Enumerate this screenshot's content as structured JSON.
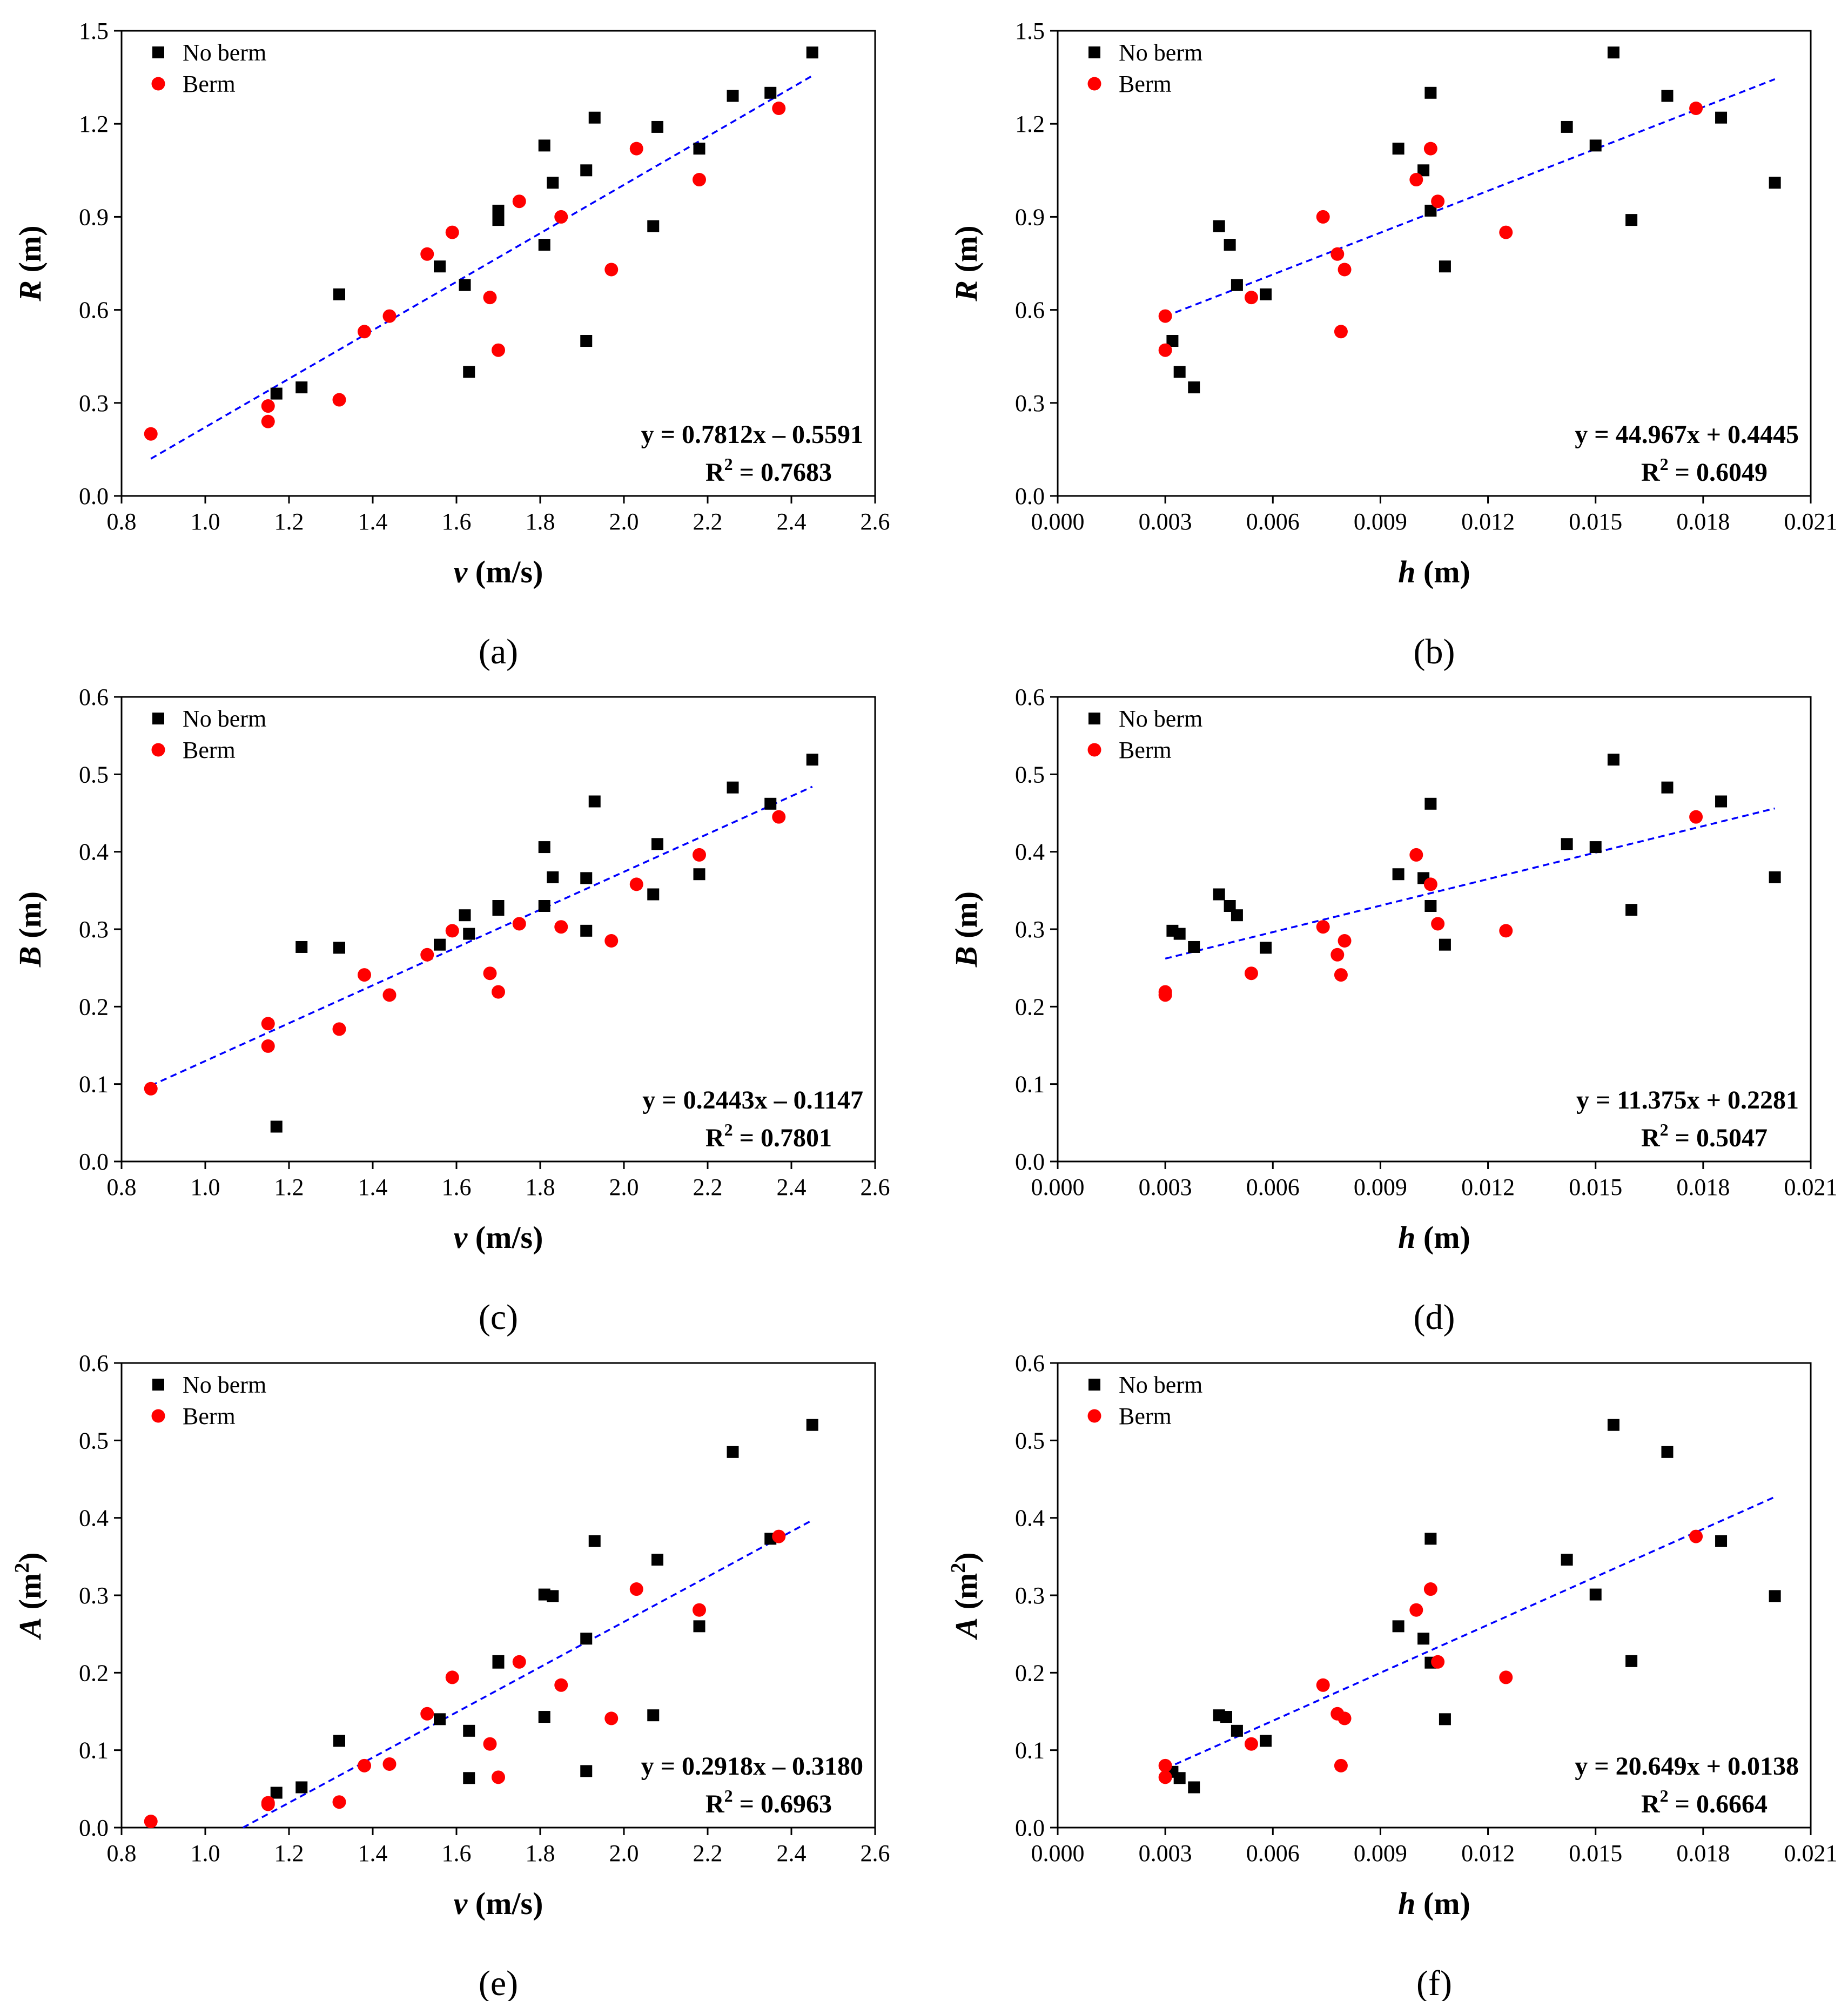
{
  "colors": {
    "no_berm": "#000000",
    "berm": "#ff0000",
    "trend": "#0000ff",
    "axis": "#000000"
  },
  "chart_data": [
    {
      "type": "scatter",
      "panel_label": "(a)",
      "xvar": "v",
      "xunit": " (m/s)",
      "yvar": "R",
      "yunit": " (m)",
      "ysup": "",
      "xlim": [
        0.8,
        2.6
      ],
      "ylim": [
        0.0,
        1.5
      ],
      "xticks": [
        "0.8",
        "1.0",
        "1.2",
        "1.4",
        "1.6",
        "1.8",
        "2.0",
        "2.2",
        "2.4",
        "2.6"
      ],
      "yticks": [
        "0.0",
        "0.3",
        "0.6",
        "0.9",
        "1.2",
        "1.5"
      ],
      "legend": [
        "No berm",
        "Berm"
      ],
      "equation": "y = 0.7812x – 0.5591",
      "r2_label": "R",
      "r2_sup": "2",
      "r2_value": " = 0.7683",
      "trend": {
        "x": [
          0.87,
          2.45
        ],
        "y": [
          0.12,
          1.355
        ]
      },
      "series": [
        {
          "name": "No berm",
          "x": [
            1.17,
            1.23,
            1.32,
            1.56,
            1.62,
            1.63,
            1.7,
            1.7,
            1.81,
            1.81,
            1.83,
            1.91,
            1.91,
            1.93,
            2.07,
            2.08,
            2.18,
            2.26,
            2.35,
            2.45
          ],
          "y": [
            0.33,
            0.35,
            0.65,
            0.74,
            0.68,
            0.4,
            0.92,
            0.89,
            1.13,
            0.81,
            1.01,
            1.05,
            0.5,
            1.22,
            0.87,
            1.19,
            1.12,
            1.29,
            1.3,
            1.43
          ]
        },
        {
          "name": "Berm",
          "x": [
            0.87,
            1.15,
            1.15,
            1.32,
            1.38,
            1.44,
            1.53,
            1.59,
            1.68,
            1.7,
            1.75,
            1.85,
            1.97,
            2.03,
            2.18,
            2.37
          ],
          "y": [
            0.2,
            0.29,
            0.24,
            0.31,
            0.53,
            0.58,
            0.78,
            0.85,
            0.64,
            0.47,
            0.95,
            0.9,
            0.73,
            1.12,
            1.02,
            1.25
          ]
        }
      ]
    },
    {
      "type": "scatter",
      "panel_label": "(b)",
      "xvar": "h",
      "xunit": " (m)",
      "yvar": "R",
      "yunit": " (m)",
      "ysup": "",
      "xlim": [
        0.0,
        0.021
      ],
      "ylim": [
        0.0,
        1.5
      ],
      "xticks": [
        "0.000",
        "0.003",
        "0.006",
        "0.009",
        "0.012",
        "0.015",
        "0.018",
        "0.021"
      ],
      "yticks": [
        "0.0",
        "0.3",
        "0.6",
        "0.9",
        "1.2",
        "1.5"
      ],
      "legend": [
        "No berm",
        "Berm"
      ],
      "equation": "y = 44.967x + 0.4445",
      "r2_label": "R",
      "r2_sup": "2",
      "r2_value": " = 0.6049",
      "trend": {
        "x": [
          0.003,
          0.02
        ],
        "y": [
          0.579,
          1.344
        ]
      },
      "series": [
        {
          "name": "No berm",
          "x": [
            0.0032,
            0.0034,
            0.0038,
            0.0045,
            0.0048,
            0.005,
            0.0058,
            0.0095,
            0.0102,
            0.0104,
            0.0104,
            0.0108,
            0.0142,
            0.015,
            0.0155,
            0.016,
            0.017,
            0.0185,
            0.02
          ],
          "y": [
            0.5,
            0.4,
            0.35,
            0.87,
            0.81,
            0.68,
            0.65,
            1.12,
            1.05,
            0.92,
            1.3,
            0.74,
            1.19,
            1.13,
            1.43,
            0.89,
            1.29,
            1.22,
            1.01
          ]
        },
        {
          "name": "Berm",
          "x": [
            0.003,
            0.003,
            0.0054,
            0.0074,
            0.0078,
            0.0079,
            0.008,
            0.01,
            0.0104,
            0.0106,
            0.0125,
            0.0178
          ],
          "y": [
            0.58,
            0.47,
            0.64,
            0.9,
            0.78,
            0.53,
            0.73,
            1.02,
            1.12,
            0.95,
            0.85,
            1.25
          ]
        }
      ]
    },
    {
      "type": "scatter",
      "panel_label": "(c)",
      "xvar": "v",
      "xunit": " (m/s)",
      "yvar": "B",
      "yunit": " (m)",
      "ysup": "",
      "xlim": [
        0.8,
        2.6
      ],
      "ylim": [
        0.0,
        0.6
      ],
      "xticks": [
        "0.8",
        "1.0",
        "1.2",
        "1.4",
        "1.6",
        "1.8",
        "2.0",
        "2.2",
        "2.4",
        "2.6"
      ],
      "yticks": [
        "0.0",
        "0.1",
        "0.2",
        "0.3",
        "0.4",
        "0.5",
        "0.6"
      ],
      "legend": [
        "No berm",
        "Berm"
      ],
      "equation": "y = 0.2443x – 0.1147",
      "r2_label": "R",
      "r2_sup": "2",
      "r2_value": " = 0.7801",
      "trend": {
        "x": [
          0.87,
          2.45
        ],
        "y": [
          0.098,
          0.484
        ]
      },
      "series": [
        {
          "name": "No berm",
          "x": [
            1.17,
            1.23,
            1.32,
            1.56,
            1.62,
            1.63,
            1.7,
            1.7,
            1.81,
            1.81,
            1.83,
            1.91,
            1.91,
            1.93,
            2.07,
            2.08,
            2.18,
            2.26,
            2.35,
            2.45
          ],
          "y": [
            0.045,
            0.277,
            0.276,
            0.28,
            0.318,
            0.294,
            0.33,
            0.325,
            0.406,
            0.33,
            0.367,
            0.366,
            0.298,
            0.465,
            0.345,
            0.41,
            0.371,
            0.483,
            0.462,
            0.519
          ]
        },
        {
          "name": "Berm",
          "x": [
            0.87,
            1.15,
            1.15,
            1.32,
            1.38,
            1.44,
            1.53,
            1.59,
            1.68,
            1.7,
            1.75,
            1.85,
            1.97,
            2.03,
            2.18,
            2.37
          ],
          "y": [
            0.094,
            0.178,
            0.149,
            0.171,
            0.241,
            0.215,
            0.267,
            0.298,
            0.243,
            0.219,
            0.307,
            0.303,
            0.285,
            0.358,
            0.396,
            0.445
          ]
        }
      ]
    },
    {
      "type": "scatter",
      "panel_label": "(d)",
      "xvar": "h",
      "xunit": " (m)",
      "yvar": "B",
      "yunit": " (m)",
      "ysup": "",
      "xlim": [
        0.0,
        0.021
      ],
      "ylim": [
        0.0,
        0.6
      ],
      "xticks": [
        "0.000",
        "0.003",
        "0.006",
        "0.009",
        "0.012",
        "0.015",
        "0.018",
        "0.021"
      ],
      "yticks": [
        "0.0",
        "0.1",
        "0.2",
        "0.3",
        "0.4",
        "0.5",
        "0.6"
      ],
      "legend": [
        "No berm",
        "Berm"
      ],
      "equation": "y = 11.375x + 0.2281",
      "r2_label": "R",
      "r2_sup": "2",
      "r2_value": " = 0.5047",
      "trend": {
        "x": [
          0.003,
          0.02
        ],
        "y": [
          0.262,
          0.456
        ]
      },
      "series": [
        {
          "name": "No berm",
          "x": [
            0.0032,
            0.0034,
            0.0038,
            0.0045,
            0.0048,
            0.005,
            0.0058,
            0.0095,
            0.0102,
            0.0104,
            0.0104,
            0.0108,
            0.0142,
            0.015,
            0.0155,
            0.016,
            0.017,
            0.0185,
            0.02
          ],
          "y": [
            0.298,
            0.294,
            0.277,
            0.345,
            0.33,
            0.318,
            0.276,
            0.371,
            0.366,
            0.33,
            0.462,
            0.28,
            0.41,
            0.406,
            0.519,
            0.325,
            0.483,
            0.465,
            0.367
          ]
        },
        {
          "name": "Berm",
          "x": [
            0.003,
            0.003,
            0.0054,
            0.0074,
            0.0078,
            0.0079,
            0.008,
            0.01,
            0.0104,
            0.0106,
            0.0125,
            0.0178
          ],
          "y": [
            0.219,
            0.215,
            0.243,
            0.303,
            0.267,
            0.241,
            0.285,
            0.396,
            0.358,
            0.307,
            0.298,
            0.445
          ]
        }
      ]
    },
    {
      "type": "scatter",
      "panel_label": "(e)",
      "xvar": "v",
      "xunit": " (m/s)",
      "yvar": "A",
      "yunit": " (m",
      "ysup": "2",
      "xlim": [
        0.8,
        2.6
      ],
      "ylim": [
        0.0,
        0.6
      ],
      "xticks": [
        "0.8",
        "1.0",
        "1.2",
        "1.4",
        "1.6",
        "1.8",
        "2.0",
        "2.2",
        "2.4",
        "2.6"
      ],
      "yticks": [
        "0.0",
        "0.1",
        "0.2",
        "0.3",
        "0.4",
        "0.5",
        "0.6"
      ],
      "legend": [
        "No berm",
        "Berm"
      ],
      "equation": "y = 0.2918x – 0.3180",
      "r2_label": "R",
      "r2_sup": "2",
      "r2_value": " = 0.6963",
      "trend": {
        "x": [
          1.09,
          2.45
        ],
        "y": [
          0.0,
          0.397
        ]
      },
      "series": [
        {
          "name": "No berm",
          "x": [
            1.17,
            1.23,
            1.32,
            1.56,
            1.63,
            1.63,
            1.7,
            1.7,
            1.81,
            1.81,
            1.83,
            1.91,
            1.91,
            1.93,
            2.07,
            2.08,
            2.18,
            2.26,
            2.35,
            2.45
          ],
          "y": [
            0.045,
            0.052,
            0.112,
            0.14,
            0.125,
            0.064,
            0.215,
            0.213,
            0.301,
            0.143,
            0.299,
            0.244,
            0.073,
            0.37,
            0.145,
            0.346,
            0.26,
            0.485,
            0.373,
            0.52
          ]
        },
        {
          "name": "Berm",
          "x": [
            0.87,
            1.15,
            1.15,
            1.32,
            1.38,
            1.44,
            1.53,
            1.59,
            1.68,
            1.7,
            1.75,
            1.85,
            1.97,
            2.03,
            2.18,
            2.37
          ],
          "y": [
            0.008,
            0.032,
            0.03,
            0.033,
            0.08,
            0.082,
            0.147,
            0.194,
            0.108,
            0.065,
            0.214,
            0.184,
            0.141,
            0.308,
            0.281,
            0.376
          ]
        }
      ]
    },
    {
      "type": "scatter",
      "panel_label": "(f)",
      "xvar": "h",
      "xunit": " (m)",
      "yvar": "A",
      "yunit": " (m",
      "ysup": "2",
      "xlim": [
        0.0,
        0.021
      ],
      "ylim": [
        0.0,
        0.6
      ],
      "xticks": [
        "0.000",
        "0.003",
        "0.006",
        "0.009",
        "0.012",
        "0.015",
        "0.018",
        "0.021"
      ],
      "yticks": [
        "0.0",
        "0.1",
        "0.2",
        "0.3",
        "0.4",
        "0.5",
        "0.6"
      ],
      "legend": [
        "No berm",
        "Berm"
      ],
      "equation": "y = 20.649x + 0.0138",
      "r2_label": "R",
      "r2_sup": "2",
      "r2_value": " = 0.6664",
      "trend": {
        "x": [
          0.003,
          0.02
        ],
        "y": [
          0.076,
          0.427
        ]
      },
      "series": [
        {
          "name": "No berm",
          "x": [
            0.0032,
            0.0034,
            0.0038,
            0.0045,
            0.0047,
            0.005,
            0.0058,
            0.0095,
            0.0102,
            0.0104,
            0.0104,
            0.0108,
            0.0142,
            0.015,
            0.0155,
            0.016,
            0.017,
            0.0185,
            0.02
          ],
          "y": [
            0.072,
            0.064,
            0.052,
            0.145,
            0.143,
            0.125,
            0.112,
            0.26,
            0.244,
            0.213,
            0.373,
            0.14,
            0.346,
            0.301,
            0.52,
            0.215,
            0.485,
            0.37,
            0.299
          ]
        },
        {
          "name": "Berm",
          "x": [
            0.003,
            0.003,
            0.0054,
            0.0074,
            0.0078,
            0.0079,
            0.008,
            0.01,
            0.0104,
            0.0106,
            0.0125,
            0.0178
          ],
          "y": [
            0.08,
            0.065,
            0.108,
            0.184,
            0.147,
            0.08,
            0.141,
            0.281,
            0.308,
            0.214,
            0.194,
            0.376
          ]
        }
      ]
    }
  ]
}
